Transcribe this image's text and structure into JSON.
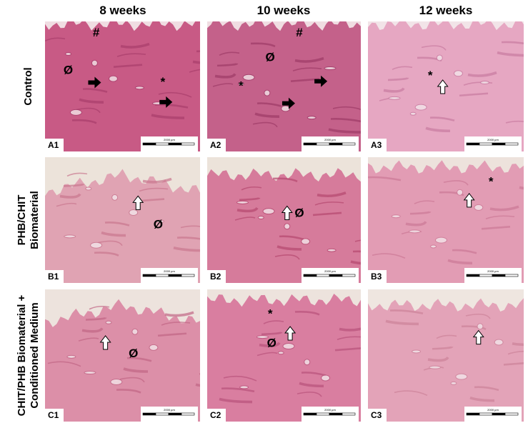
{
  "columns": [
    "8 weeks",
    "10 weeks",
    "12 weeks"
  ],
  "rows": [
    {
      "label": [
        "Control"
      ]
    },
    {
      "label": [
        "PHB/CHIT",
        "Biomaterial"
      ]
    },
    {
      "label": [
        "CHIT/PHB Biomaterial +",
        "Conditioned Medium"
      ]
    }
  ],
  "scale_bar_label": "2000 µm",
  "panels": [
    [
      {
        "label": "A1",
        "symbols": [
          "#",
          "Ø",
          "*"
        ]
      },
      {
        "label": "A2",
        "symbols": [
          "#",
          "Ø",
          "*"
        ]
      },
      {
        "label": "A3",
        "symbols": [
          "*"
        ]
      }
    ],
    [
      {
        "label": "B1",
        "symbols": [
          "Ø"
        ]
      },
      {
        "label": "B2",
        "symbols": [
          "Ø"
        ]
      },
      {
        "label": "B3",
        "symbols": [
          "*"
        ]
      }
    ],
    [
      {
        "label": "C1",
        "symbols": [
          "Ø"
        ]
      },
      {
        "label": "C2",
        "symbols": [
          "*",
          "Ø"
        ]
      },
      {
        "label": "C3",
        "symbols": []
      }
    ]
  ]
}
